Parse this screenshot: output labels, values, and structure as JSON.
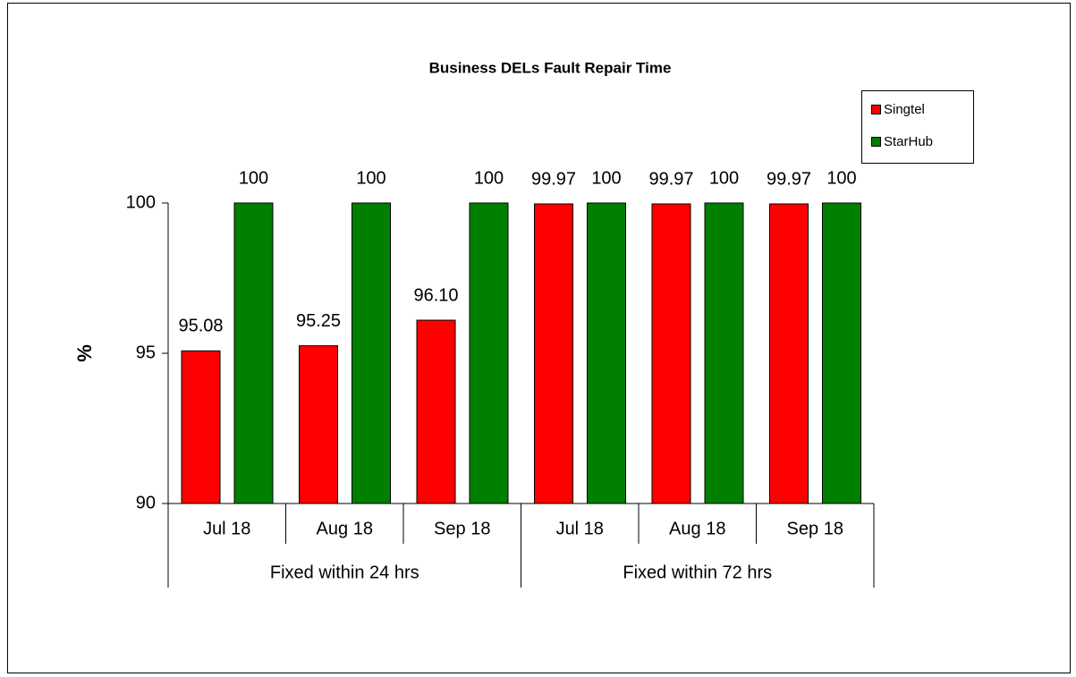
{
  "chart_data": {
    "type": "bar",
    "title": "Business DELs Fault Repair Time",
    "y_label": "%",
    "categories": [
      "Jul 18",
      "Aug 18",
      "Sep 18",
      "Jul 18",
      "Aug 18",
      "Sep 18"
    ],
    "groups": [
      "Fixed within 24 hrs",
      "Fixed within 72 hrs"
    ],
    "series": [
      {
        "name": "Singtel",
        "color": "#ff0000",
        "values": [
          95.08,
          95.25,
          96.1,
          99.97,
          99.97,
          99.97
        ],
        "value_labels": [
          "95.08",
          "95.25",
          "96.10",
          "99.97",
          "99.97",
          "99.97"
        ]
      },
      {
        "name": "StarHub",
        "color": "#007f00",
        "values": [
          100,
          100,
          100,
          100,
          100,
          100
        ]
      }
    ],
    "ylim": [
      90,
      100
    ],
    "yticks": [
      90,
      95,
      100
    ],
    "grid": false,
    "legend": "top-right"
  }
}
